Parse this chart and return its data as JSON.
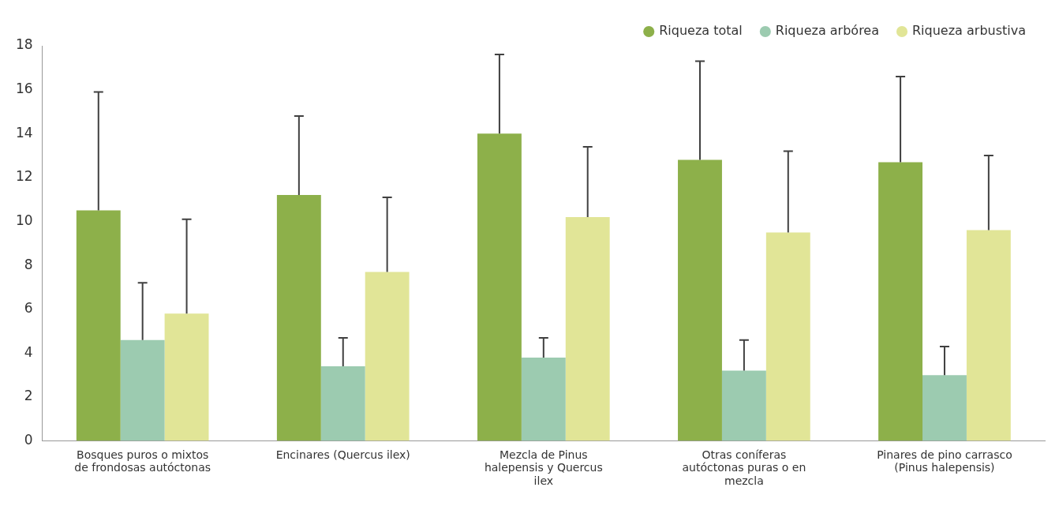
{
  "chart_data": {
    "type": "bar",
    "categories": [
      "Bosques puros o mixtos de frondosas autóctonas",
      "Encinares (Quercus ilex)",
      "Mezcla de Pinus halepensis y Quercus ilex",
      "Otras coníferas autóctonas puras o en mezcla",
      "Pinares de pino carrasco (Pinus halepensis)"
    ],
    "series": [
      {
        "name": "Riqueza total",
        "color": "#8db04a",
        "values": [
          10.5,
          11.2,
          14.0,
          12.8,
          12.7
        ],
        "errors": [
          [
            10.5,
            15.9
          ],
          [
            11.2,
            14.8
          ],
          [
            14.0,
            17.6
          ],
          [
            12.8,
            17.3
          ],
          [
            12.7,
            16.6
          ]
        ]
      },
      {
        "name": "Riqueza arbórea",
        "color": "#9ccbb0",
        "values": [
          4.6,
          3.4,
          3.8,
          3.2,
          3.0
        ],
        "errors": [
          [
            4.6,
            7.2
          ],
          [
            3.4,
            4.7
          ],
          [
            3.8,
            4.7
          ],
          [
            3.2,
            4.6
          ],
          [
            3.0,
            4.3
          ]
        ]
      },
      {
        "name": "Riqueza arbustiva",
        "color": "#e1e597",
        "values": [
          5.8,
          7.7,
          10.2,
          9.5,
          9.6
        ],
        "errors": [
          [
            5.8,
            10.1
          ],
          [
            7.7,
            11.1
          ],
          [
            10.2,
            13.4
          ],
          [
            9.5,
            13.2
          ],
          [
            9.6,
            13.0
          ]
        ]
      }
    ],
    "ylim": [
      0,
      18
    ],
    "yticks": [
      0,
      2,
      4,
      6,
      8,
      10,
      12,
      14,
      16,
      18
    ],
    "grid": false,
    "legend": "top right"
  }
}
